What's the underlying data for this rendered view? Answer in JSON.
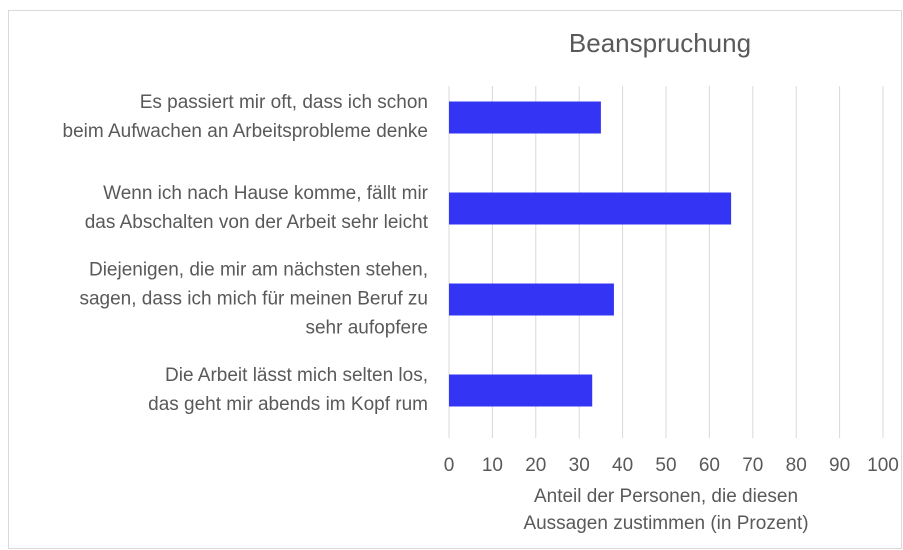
{
  "chart_data": {
    "type": "barh",
    "title": "Beanspruchung",
    "categories": [
      [
        "Es passiert mir oft, dass ich schon",
        "beim Aufwachen an Arbeitsprobleme denke"
      ],
      [
        "Wenn ich nach Hause komme, fällt mir",
        "das Abschalten von der Arbeit sehr leicht"
      ],
      [
        "Diejenigen, die mir am nächsten stehen,",
        "sagen, dass ich mich für meinen Beruf zu",
        "sehr aufopfere"
      ],
      [
        "Die Arbeit lässt mich selten los,",
        "das geht mir abends im Kopf rum"
      ]
    ],
    "values": [
      35,
      65,
      38,
      33
    ],
    "color": "#3434f4",
    "xlim": [
      0,
      100
    ],
    "xticks": [
      0,
      10,
      20,
      30,
      40,
      50,
      60,
      70,
      80,
      90,
      100
    ],
    "xlabel": [
      "Anteil der Personen, die diesen",
      "Aussagen zustimmen (in Prozent)"
    ],
    "grid": true
  }
}
